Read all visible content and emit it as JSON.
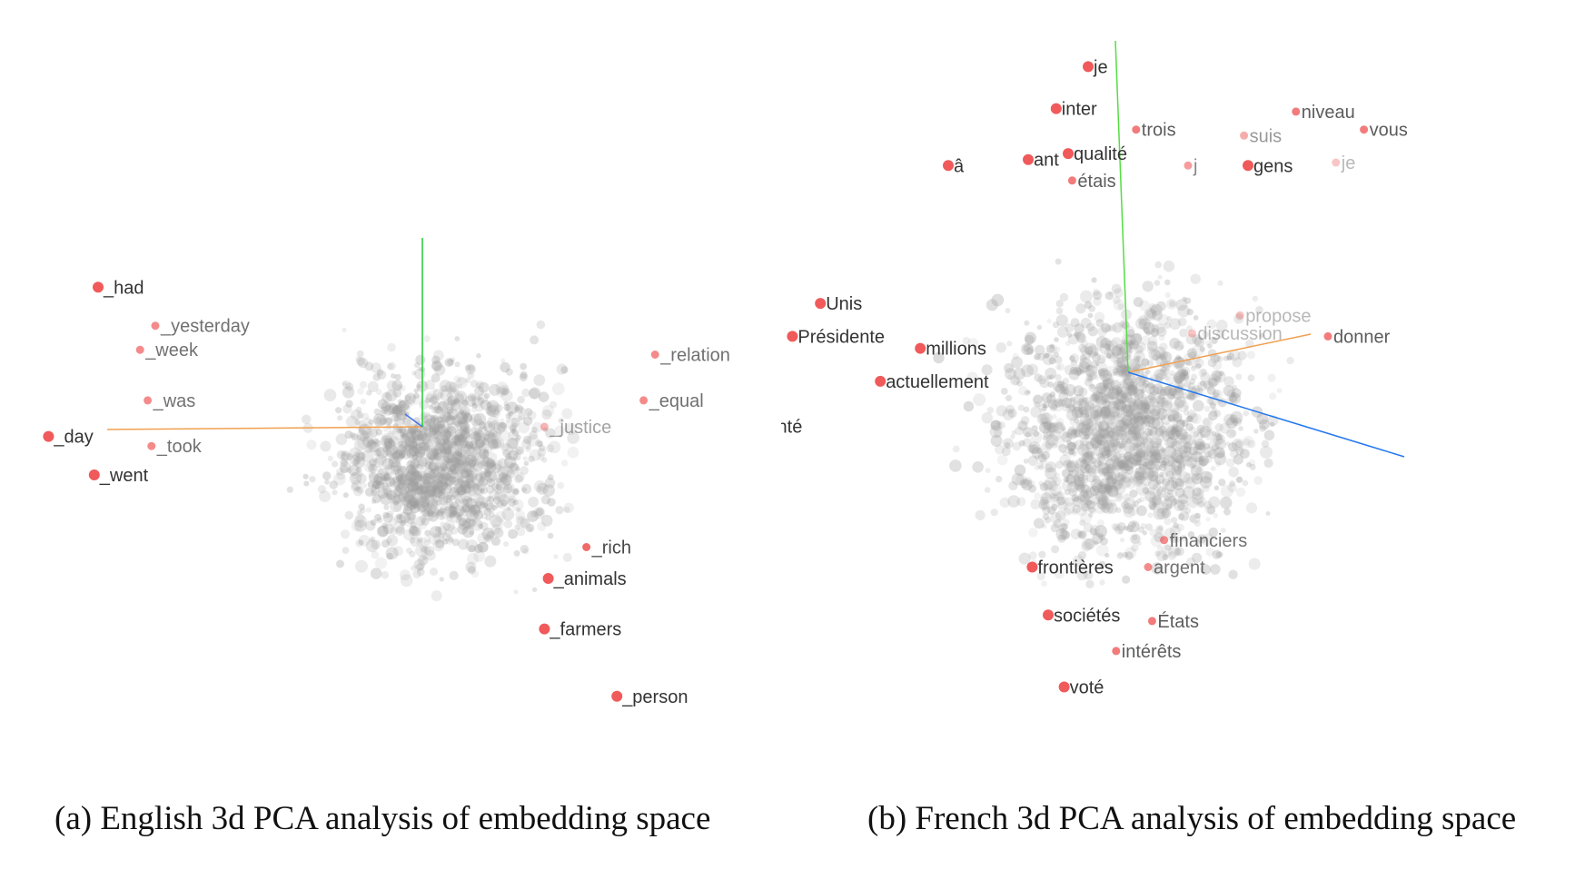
{
  "chart_data": [
    {
      "type": "scatter",
      "caption": "(a) English 3d PCA analysis of embedding space",
      "grid": false,
      "axes_visible": [
        "green-vertical",
        "orange-horizontal",
        "blue-short"
      ],
      "point_colors": {
        "highlight": "#f05a5a",
        "background": "#9a9a9a"
      },
      "x": [
        -100,
        100
      ],
      "y": [
        -100,
        100
      ],
      "highlighted": [
        {
          "label": "_had",
          "x": -85,
          "y": 58,
          "strength": 1.0
        },
        {
          "label": "_yesterday",
          "x": -70,
          "y": 42,
          "strength": 0.7
        },
        {
          "label": "_week",
          "x": -74,
          "y": 32,
          "strength": 0.7
        },
        {
          "label": "_was",
          "x": -72,
          "y": 11,
          "strength": 0.7
        },
        {
          "label": "_day",
          "x": -98,
          "y": -4,
          "strength": 1.0
        },
        {
          "label": "_took",
          "x": -71,
          "y": -8,
          "strength": 0.7
        },
        {
          "label": "_went",
          "x": -86,
          "y": -20,
          "strength": 1.0
        },
        {
          "label": "_relation",
          "x": 61,
          "y": 30,
          "strength": 0.7
        },
        {
          "label": "_equal",
          "x": 58,
          "y": 11,
          "strength": 0.7
        },
        {
          "label": "_justice",
          "x": 32,
          "y": 0,
          "strength": 0.45
        },
        {
          "label": "_rich",
          "x": 43,
          "y": -50,
          "strength": 0.9
        },
        {
          "label": "_animals",
          "x": 33,
          "y": -63,
          "strength": 1.0
        },
        {
          "label": "_farmers",
          "x": 32,
          "y": -84,
          "strength": 1.0
        },
        {
          "label": "_person",
          "x": 51,
          "y": -112,
          "strength": 1.0
        }
      ]
    },
    {
      "type": "scatter",
      "caption": "(b) French 3d PCA analysis of embedding space",
      "grid": false,
      "axes_visible": [
        "green-vertical",
        "orange-diagonal",
        "blue-diagonal"
      ],
      "point_colors": {
        "highlight": "#f05a5a",
        "background": "#9a9a9a"
      },
      "x": [
        -100,
        100
      ],
      "y": [
        -100,
        100
      ],
      "highlighted": [
        {
          "label": "je",
          "x": -10,
          "y": 102,
          "strength": 1.0
        },
        {
          "label": "inter",
          "x": -18,
          "y": 88,
          "strength": 1.0
        },
        {
          "label": "trois",
          "x": 2,
          "y": 81,
          "strength": 0.8
        },
        {
          "label": "niveau",
          "x": 42,
          "y": 87,
          "strength": 0.8
        },
        {
          "label": "vous",
          "x": 59,
          "y": 81,
          "strength": 0.8
        },
        {
          "label": "suis",
          "x": 29,
          "y": 79,
          "strength": 0.5
        },
        {
          "label": "â",
          "x": -45,
          "y": 69,
          "strength": 1.0
        },
        {
          "label": "ant",
          "x": -25,
          "y": 71,
          "strength": 1.0
        },
        {
          "label": "qualité",
          "x": -15,
          "y": 73,
          "strength": 1.0
        },
        {
          "label": "j",
          "x": 15,
          "y": 69,
          "strength": 0.6
        },
        {
          "label": "gens",
          "x": 30,
          "y": 69,
          "strength": 1.0
        },
        {
          "label": "je",
          "x": 52,
          "y": 70,
          "strength": 0.3
        },
        {
          "label": "étais",
          "x": -14,
          "y": 64,
          "strength": 0.8
        },
        {
          "label": "Unis",
          "x": -77,
          "y": 23,
          "strength": 1.0
        },
        {
          "label": "propose",
          "x": 28,
          "y": 19,
          "strength": 0.3
        },
        {
          "label": "discussion",
          "x": 16,
          "y": 13,
          "strength": 0.35
        },
        {
          "label": "donner",
          "x": 50,
          "y": 12,
          "strength": 0.8
        },
        {
          "label": "Présidente",
          "x": -84,
          "y": 12,
          "strength": 1.0
        },
        {
          "label": "millions",
          "x": -52,
          "y": 8,
          "strength": 1.0
        },
        {
          "label": "actuellement",
          "x": -62,
          "y": -3,
          "strength": 1.0
        },
        {
          "label": "santé",
          "x": -94,
          "y": -18,
          "strength": 1.0
        },
        {
          "label": "financiers",
          "x": 9,
          "y": -56,
          "strength": 0.7
        },
        {
          "label": "frontières",
          "x": -24,
          "y": -65,
          "strength": 1.0
        },
        {
          "label": "argent",
          "x": 5,
          "y": -65,
          "strength": 0.7
        },
        {
          "label": "sociétés",
          "x": -20,
          "y": -81,
          "strength": 1.0
        },
        {
          "label": "États",
          "x": 6,
          "y": -83,
          "strength": 0.8
        },
        {
          "label": "intérêts",
          "x": -3,
          "y": -93,
          "strength": 0.8
        },
        {
          "label": "voté",
          "x": -16,
          "y": -105,
          "strength": 1.0
        }
      ]
    }
  ]
}
